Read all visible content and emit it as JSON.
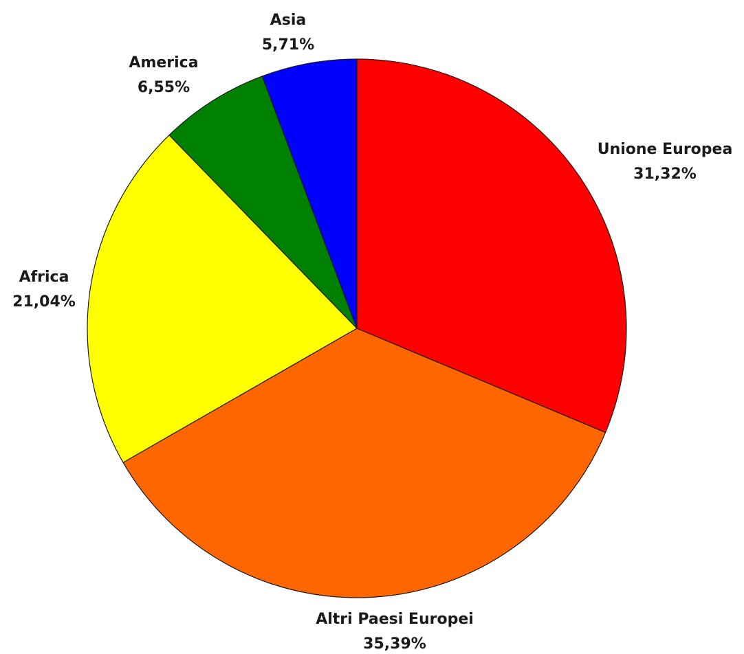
{
  "chart_data": {
    "type": "pie",
    "title": "",
    "slices": [
      {
        "name": "Unione Europea",
        "value": 31.32,
        "label": "31,32%",
        "color": "#ff0000"
      },
      {
        "name": "Altri Paesi Europei",
        "value": 35.39,
        "label": "35,39%",
        "color": "#ff6600"
      },
      {
        "name": "Africa",
        "value": 21.04,
        "label": "21,04%",
        "color": "#ffff00"
      },
      {
        "name": "America",
        "value": 6.55,
        "label": "6,55%",
        "color": "#008000"
      },
      {
        "name": "Asia",
        "value": 5.71,
        "label": "5,71%",
        "color": "#0000ff"
      }
    ],
    "start_angle": "12 o'clock",
    "direction": "clockwise",
    "legend": "none",
    "labels": "outside"
  }
}
